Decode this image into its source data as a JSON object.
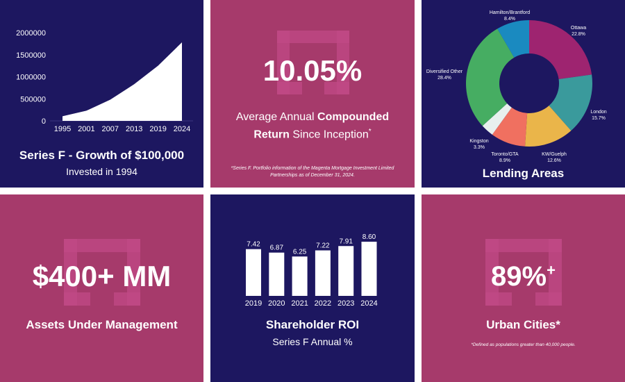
{
  "colors": {
    "navy": "#1d1760",
    "magenta": "#a63a6b",
    "white": "#ffffff"
  },
  "growth": {
    "title": "Series F - Growth of $100,000",
    "subtitle": "Invested in 1994"
  },
  "return_stat": {
    "value": "10.05%",
    "line1_prefix": "Average Annual ",
    "line1_bold": "Compounded",
    "line2_bold": "Return",
    "line2_suffix": " Since Inception",
    "asterisk": "*",
    "footnote_line1": "*Series F. Portfolio information of the Magenta Mortgage Investment Limited",
    "footnote_line2": "Partnerships as of December 31, 2024."
  },
  "aum": {
    "value": "$400+ MM",
    "label": "Assets Under Management"
  },
  "roi": {
    "title": "Shareholder ROI",
    "subtitle": "Series F Annual %"
  },
  "urban": {
    "value": "89%",
    "plus": "+",
    "label": "Urban Cities*",
    "footnote": "*Defined as populations greater than 40,000 people."
  },
  "lending": {
    "title": "Lending Areas"
  },
  "chart_data": [
    {
      "type": "area",
      "x": [
        "1995",
        "2001",
        "2007",
        "2013",
        "2019",
        "2024"
      ],
      "values": [
        105000,
        230000,
        480000,
        830000,
        1250000,
        1780000
      ],
      "ylim": [
        0,
        2000000
      ],
      "yticks": [
        "2000000",
        "1500000",
        "1000000",
        "500000",
        "0"
      ],
      "ytick_values": [
        2000000,
        1500000,
        1000000,
        500000,
        0
      ],
      "title": "Series F - Growth of $100,000",
      "color": "#ffffff"
    },
    {
      "type": "bar",
      "categories": [
        "2019",
        "2020",
        "2021",
        "2022",
        "2023",
        "2024"
      ],
      "values": [
        7.42,
        6.87,
        6.25,
        7.22,
        7.91,
        8.6
      ],
      "labels": [
        "7.42",
        "6.87",
        "6.25",
        "7.22",
        "7.91",
        "8.60"
      ],
      "title": "Shareholder ROI",
      "ylim": [
        0,
        8.6
      ],
      "color": "#ffffff"
    },
    {
      "type": "pie",
      "title": "Lending Areas",
      "slices": [
        {
          "name": "Ottawa",
          "value": 22.8,
          "label": "22.8%",
          "color": "#9e2470"
        },
        {
          "name": "London",
          "value": 15.7,
          "label": "15.7%",
          "color": "#3a9a9c"
        },
        {
          "name": "KW/Guelph",
          "value": 12.6,
          "label": "12.6%",
          "color": "#eab54a"
        },
        {
          "name": "Toronto/GTA",
          "value": 8.9,
          "label": "8.9%",
          "color": "#f07060"
        },
        {
          "name": "Kingston",
          "value": 3.3,
          "label": "3.3%",
          "color": "#e8f0ee"
        },
        {
          "name": "Diversified Other",
          "value": 28.4,
          "label": "28.4%",
          "color": "#46ad62"
        },
        {
          "name": "Hamilton/Brantford",
          "value": 8.4,
          "label": "8.4%",
          "color": "#1a8ac0"
        }
      ]
    }
  ]
}
